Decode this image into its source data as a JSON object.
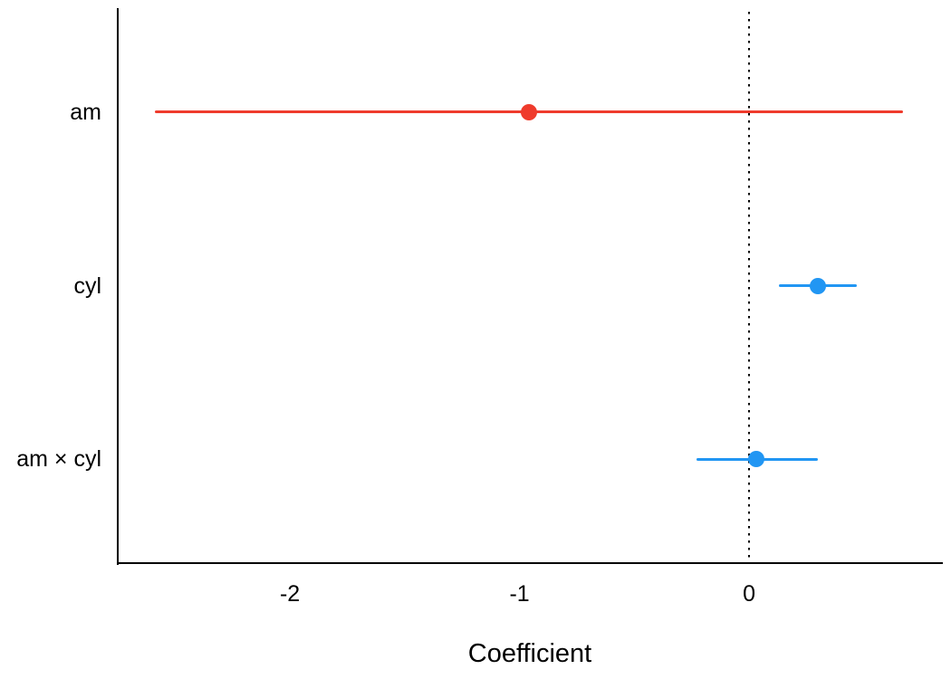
{
  "chart_data": {
    "type": "scatter",
    "subtype": "coefficient-dot-whisker",
    "orientation": "horizontal",
    "title": "",
    "xlabel": "Coefficient",
    "ylabel": "",
    "xticks": [
      -2,
      -1,
      0
    ],
    "xlim": [
      -2.75,
      0.84
    ],
    "grid": "off",
    "legend": "none",
    "zero_line": {
      "x": 0,
      "style": "dotted",
      "color": "#000000"
    },
    "axis_color": "#000000",
    "text_color": "#000000",
    "categories": [
      "am",
      "cyl",
      "am × cyl"
    ],
    "rows": [
      {
        "label": "am",
        "estimate": -0.96,
        "ci_low": -2.59,
        "ci_high": 0.67,
        "color": "#ef3b2c"
      },
      {
        "label": "cyl",
        "estimate": 0.3,
        "ci_low": 0.13,
        "ci_high": 0.47,
        "color": "#2196f3"
      },
      {
        "label": "am × cyl",
        "estimate": 0.03,
        "ci_low": -0.23,
        "ci_high": 0.3,
        "color": "#2196f3"
      }
    ]
  }
}
